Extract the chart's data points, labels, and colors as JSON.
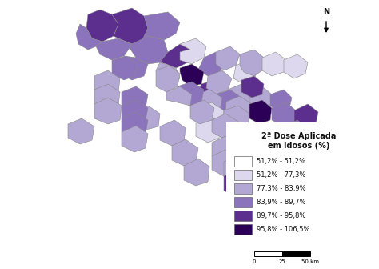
{
  "legend_title_line1": "2ª Dose Aplicada",
  "legend_title_line2": "em Idosos (%)",
  "legend_labels": [
    "51,2% - 51,2%",
    "51,2% - 77,3%",
    "77,3% - 83,9%",
    "83,9% - 89,7%",
    "89,7% - 95,8%",
    "95,8% - 106,5%"
  ],
  "legend_colors": [
    "#FFFFFF",
    "#DDD8ED",
    "#B3A8D4",
    "#8B74BC",
    "#5C2E8E",
    "#2D0057"
  ],
  "edge_color": "#888888",
  "background_color": "#FFFFFF",
  "fig_width": 4.74,
  "fig_height": 3.36,
  "dpi": 100
}
